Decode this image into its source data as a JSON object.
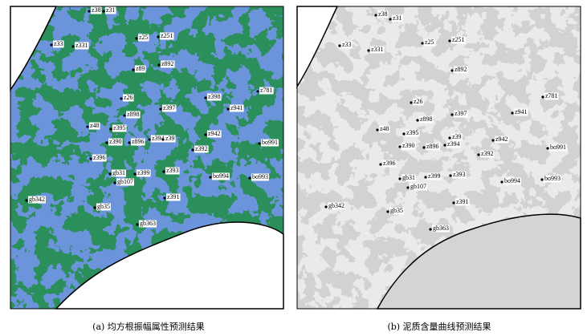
{
  "panels": [
    {
      "caption": "(a) 均方根振幅属性预测结果",
      "wells": [
        "z38",
        "z31",
        "z33",
        "z331",
        "z25",
        "z251",
        "z89",
        "z892",
        "z26",
        "z397",
        "z398",
        "z941",
        "z781",
        "z898",
        "z48",
        "z395",
        "z390",
        "z896",
        "z394",
        "z39",
        "z942",
        "z392",
        "bo991",
        "z396",
        "gb31",
        "z399",
        "z393",
        "bo994",
        "bo993",
        "gb107",
        "gb342",
        "z391",
        "gb35",
        "gb363"
      ]
    },
    {
      "caption": "(b) 泥质含量曲线预测结果",
      "wells": [
        "z38",
        "z31",
        "z33",
        "z331",
        "z25",
        "z251",
        "z892",
        "z26",
        "z397",
        "z941",
        "z781",
        "z898",
        "z48",
        "z395",
        "z390",
        "z896",
        "z39",
        "z394",
        "z942",
        "z392",
        "bo991",
        "z396",
        "gb31",
        "z399",
        "z393",
        "bo994",
        "bo993",
        "gb107",
        "gb342",
        "z391",
        "gb35",
        "gb363"
      ]
    }
  ]
}
